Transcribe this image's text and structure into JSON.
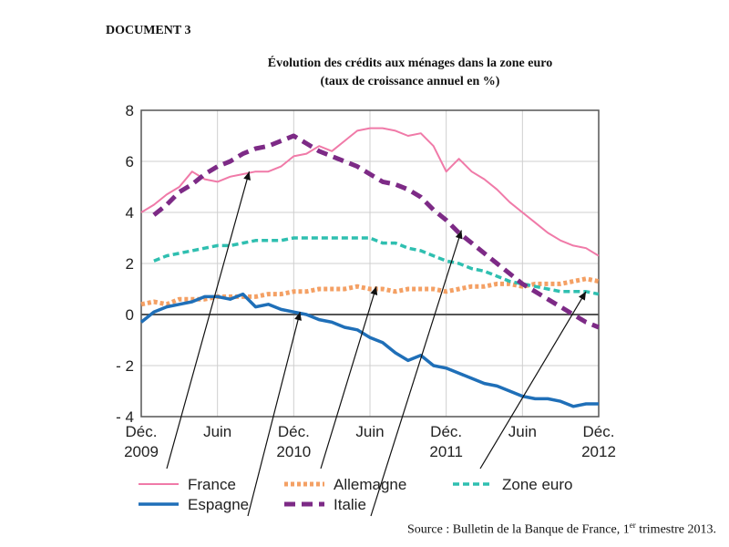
{
  "document_label": "DOCUMENT 3",
  "title_line1": "Évolution des crédits aux ménages dans la zone euro",
  "title_line2": "(taux de croissance annuel en %)",
  "source_prefix": "Source : Bulletin de la Banque de France, 1",
  "source_sup": "er",
  "source_suffix": " trimestre 2013.",
  "colors": {
    "France": "#f07aa8",
    "Allemagne": "#f4a064",
    "Zone euro": "#2fbfb0",
    "Espagne": "#1f6fb8",
    "Italie": "#7d2a86"
  },
  "chart_data": {
    "type": "line",
    "ylim": [
      -4,
      8
    ],
    "yticks": [
      8,
      6,
      4,
      2,
      0,
      -2,
      -4
    ],
    "ytick_labels": [
      "8",
      "6",
      "4",
      "2",
      "0",
      "- 2",
      "- 4"
    ],
    "x_range": [
      0,
      36
    ],
    "x_ticks": [
      {
        "x": 0,
        "line1": "Déc.",
        "line2": "2009"
      },
      {
        "x": 6,
        "line1": "Juin",
        "line2": ""
      },
      {
        "x": 12,
        "line1": "Déc.",
        "line2": "2010"
      },
      {
        "x": 18,
        "line1": "Juin",
        "line2": ""
      },
      {
        "x": 24,
        "line1": "Déc.",
        "line2": "2011"
      },
      {
        "x": 30,
        "line1": "Juin",
        "line2": ""
      },
      {
        "x": 36,
        "line1": "Déc.",
        "line2": "2012"
      }
    ],
    "grid": true,
    "legend_position": "bottom",
    "series": [
      {
        "name": "France",
        "style": "solid",
        "values": [
          [
            0,
            4.0
          ],
          [
            1,
            4.3
          ],
          [
            2,
            4.7
          ],
          [
            3,
            5.0
          ],
          [
            4,
            5.6
          ],
          [
            5,
            5.3
          ],
          [
            6,
            5.2
          ],
          [
            7,
            5.4
          ],
          [
            8,
            5.5
          ],
          [
            9,
            5.6
          ],
          [
            10,
            5.6
          ],
          [
            11,
            5.8
          ],
          [
            12,
            6.2
          ],
          [
            13,
            6.3
          ],
          [
            14,
            6.6
          ],
          [
            15,
            6.4
          ],
          [
            16,
            6.8
          ],
          [
            17,
            7.2
          ],
          [
            18,
            7.3
          ],
          [
            19,
            7.3
          ],
          [
            20,
            7.2
          ],
          [
            21,
            7.0
          ],
          [
            22,
            7.1
          ],
          [
            23,
            6.6
          ],
          [
            24,
            5.6
          ],
          [
            25,
            6.1
          ],
          [
            26,
            5.6
          ],
          [
            27,
            5.3
          ],
          [
            28,
            4.9
          ],
          [
            29,
            4.4
          ],
          [
            30,
            4.0
          ],
          [
            31,
            3.6
          ],
          [
            32,
            3.2
          ],
          [
            33,
            2.9
          ],
          [
            34,
            2.7
          ],
          [
            35,
            2.6
          ],
          [
            36,
            2.3
          ]
        ]
      },
      {
        "name": "Allemagne",
        "style": "dotted",
        "values": [
          [
            0,
            0.4
          ],
          [
            1,
            0.5
          ],
          [
            2,
            0.4
          ],
          [
            3,
            0.6
          ],
          [
            4,
            0.6
          ],
          [
            5,
            0.6
          ],
          [
            6,
            0.7
          ],
          [
            7,
            0.7
          ],
          [
            8,
            0.7
          ],
          [
            9,
            0.7
          ],
          [
            10,
            0.8
          ],
          [
            11,
            0.8
          ],
          [
            12,
            0.9
          ],
          [
            13,
            0.9
          ],
          [
            14,
            1.0
          ],
          [
            15,
            1.0
          ],
          [
            16,
            1.0
          ],
          [
            17,
            1.1
          ],
          [
            18,
            1.0
          ],
          [
            19,
            1.0
          ],
          [
            20,
            0.9
          ],
          [
            21,
            1.0
          ],
          [
            22,
            1.0
          ],
          [
            23,
            1.0
          ],
          [
            24,
            0.9
          ],
          [
            25,
            1.0
          ],
          [
            26,
            1.1
          ],
          [
            27,
            1.1
          ],
          [
            28,
            1.2
          ],
          [
            29,
            1.2
          ],
          [
            30,
            1.1
          ],
          [
            31,
            1.2
          ],
          [
            32,
            1.2
          ],
          [
            33,
            1.2
          ],
          [
            34,
            1.3
          ],
          [
            35,
            1.4
          ],
          [
            36,
            1.3
          ]
        ]
      },
      {
        "name": "Zone euro",
        "style": "dashed",
        "values": [
          [
            1,
            2.1
          ],
          [
            2,
            2.3
          ],
          [
            3,
            2.4
          ],
          [
            4,
            2.5
          ],
          [
            5,
            2.6
          ],
          [
            6,
            2.7
          ],
          [
            7,
            2.7
          ],
          [
            8,
            2.8
          ],
          [
            9,
            2.9
          ],
          [
            10,
            2.9
          ],
          [
            11,
            2.9
          ],
          [
            12,
            3.0
          ],
          [
            13,
            3.0
          ],
          [
            14,
            3.0
          ],
          [
            15,
            3.0
          ],
          [
            16,
            3.0
          ],
          [
            17,
            3.0
          ],
          [
            18,
            3.0
          ],
          [
            19,
            2.8
          ],
          [
            20,
            2.8
          ],
          [
            21,
            2.6
          ],
          [
            22,
            2.5
          ],
          [
            23,
            2.3
          ],
          [
            24,
            2.1
          ],
          [
            25,
            2.0
          ],
          [
            26,
            1.8
          ],
          [
            27,
            1.7
          ],
          [
            28,
            1.5
          ],
          [
            29,
            1.3
          ],
          [
            30,
            1.2
          ],
          [
            31,
            1.1
          ],
          [
            32,
            1.0
          ],
          [
            33,
            0.9
          ],
          [
            34,
            0.9
          ],
          [
            35,
            0.9
          ],
          [
            36,
            0.8
          ]
        ]
      },
      {
        "name": "Espagne",
        "style": "solid",
        "values": [
          [
            0,
            -0.3
          ],
          [
            1,
            0.1
          ],
          [
            2,
            0.3
          ],
          [
            3,
            0.4
          ],
          [
            4,
            0.5
          ],
          [
            5,
            0.7
          ],
          [
            6,
            0.7
          ],
          [
            7,
            0.6
          ],
          [
            8,
            0.8
          ],
          [
            9,
            0.3
          ],
          [
            10,
            0.4
          ],
          [
            11,
            0.2
          ],
          [
            12,
            0.1
          ],
          [
            13,
            0.0
          ],
          [
            14,
            -0.2
          ],
          [
            15,
            -0.3
          ],
          [
            16,
            -0.5
          ],
          [
            17,
            -0.6
          ],
          [
            18,
            -0.9
          ],
          [
            19,
            -1.1
          ],
          [
            20,
            -1.5
          ],
          [
            21,
            -1.8
          ],
          [
            22,
            -1.6
          ],
          [
            23,
            -2.0
          ],
          [
            24,
            -2.1
          ],
          [
            25,
            -2.3
          ],
          [
            26,
            -2.5
          ],
          [
            27,
            -2.7
          ],
          [
            28,
            -2.8
          ],
          [
            29,
            -3.0
          ],
          [
            30,
            -3.2
          ],
          [
            31,
            -3.3
          ],
          [
            32,
            -3.3
          ],
          [
            33,
            -3.4
          ],
          [
            34,
            -3.6
          ],
          [
            35,
            -3.5
          ],
          [
            36,
            -3.5
          ]
        ]
      },
      {
        "name": "Italie",
        "style": "dashed",
        "values": [
          [
            1,
            3.9
          ],
          [
            2,
            4.3
          ],
          [
            3,
            4.8
          ],
          [
            4,
            5.1
          ],
          [
            5,
            5.5
          ],
          [
            6,
            5.8
          ],
          [
            7,
            6.0
          ],
          [
            8,
            6.3
          ],
          [
            9,
            6.5
          ],
          [
            10,
            6.6
          ],
          [
            11,
            6.8
          ],
          [
            12,
            7.0
          ],
          [
            13,
            6.7
          ],
          [
            14,
            6.4
          ],
          [
            15,
            6.2
          ],
          [
            16,
            6.0
          ],
          [
            17,
            5.8
          ],
          [
            18,
            5.5
          ],
          [
            19,
            5.2
          ],
          [
            20,
            5.1
          ],
          [
            21,
            4.9
          ],
          [
            22,
            4.6
          ],
          [
            23,
            4.1
          ],
          [
            24,
            3.7
          ],
          [
            25,
            3.2
          ],
          [
            26,
            2.8
          ],
          [
            27,
            2.4
          ],
          [
            28,
            2.0
          ],
          [
            29,
            1.6
          ],
          [
            30,
            1.2
          ],
          [
            31,
            0.9
          ],
          [
            32,
            0.6
          ],
          [
            33,
            0.3
          ],
          [
            34,
            0.0
          ],
          [
            35,
            -0.3
          ],
          [
            36,
            -0.5
          ]
        ]
      }
    ],
    "legend": [
      {
        "name": "France",
        "row": 0,
        "col": 0
      },
      {
        "name": "Allemagne",
        "row": 0,
        "col": 1
      },
      {
        "name": "Zone euro",
        "row": 0,
        "col": 2
      },
      {
        "name": "Espagne",
        "row": 1,
        "col": 0
      },
      {
        "name": "Italie",
        "row": 1,
        "col": 1
      }
    ],
    "annotation_arrows": [
      {
        "series": "France",
        "target": [
          8.5,
          5.6
        ],
        "from_legend": true
      },
      {
        "series": "Espagne",
        "target": [
          12.5,
          0.1
        ],
        "from_legend": true
      },
      {
        "series": "Allemagne",
        "target": [
          18.5,
          1.1
        ],
        "from_legend": true
      },
      {
        "series": "Italie",
        "target": [
          25.2,
          3.3
        ],
        "from_legend": true
      },
      {
        "series": "Zone euro",
        "target": [
          35.0,
          0.9
        ],
        "from_legend": true
      }
    ]
  }
}
